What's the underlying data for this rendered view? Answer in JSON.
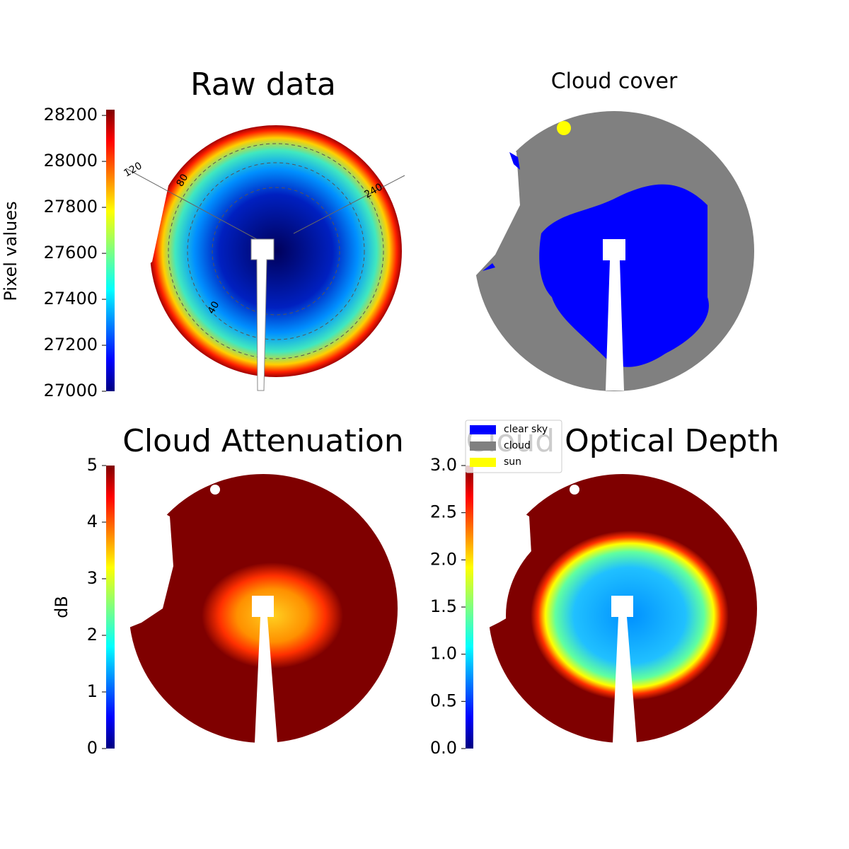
{
  "chart_data": [
    {
      "type": "heatmap",
      "title": "Raw data",
      "colorbar_label": "Pixel values",
      "clim": [
        27000,
        28225
      ],
      "cticks": [
        27000,
        27200,
        27400,
        27600,
        27800,
        28000,
        28200
      ],
      "annotations": [
        "120",
        "80",
        "240",
        "40"
      ]
    },
    {
      "type": "classification",
      "title": "Cloud cover",
      "legend": [
        {
          "name": "clear sky",
          "color": "#0000ff"
        },
        {
          "name": "cloud",
          "color": "#808080"
        },
        {
          "name": "sun",
          "color": "#ffff00"
        }
      ]
    },
    {
      "type": "heatmap",
      "title": "Cloud Attenuation",
      "colorbar_label": "dB",
      "clim": [
        0,
        5
      ],
      "cticks": [
        0,
        1,
        2,
        3,
        4,
        5
      ]
    },
    {
      "type": "heatmap",
      "title": "Cloud Optical Depth",
      "clim": [
        0,
        3
      ],
      "cticks": [
        {
          "value": 0,
          "label": "0.0"
        },
        0.5,
        {
          "value": 1,
          "label": "1.0"
        },
        1.5,
        {
          "value": 2,
          "label": "2.0"
        },
        2.5,
        {
          "value": 3,
          "label": "3.0"
        }
      ]
    }
  ]
}
